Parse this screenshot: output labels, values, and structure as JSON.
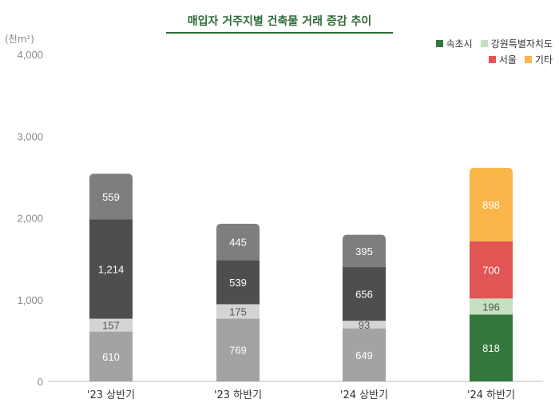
{
  "chart_data": {
    "type": "bar",
    "stacked": true,
    "title": "매입자 거주지별 건축물 거래 증감 추이",
    "unit_label": "(천m²)",
    "ylim": [
      0,
      4000
    ],
    "yticks": [
      "0",
      "1,000",
      "2,000",
      "3,000",
      "4,000"
    ],
    "ytick_values": [
      0,
      1000,
      2000,
      3000,
      4000
    ],
    "categories": [
      "'23 상반기",
      "'23 하반기",
      "'24 상반기",
      "'24 하반기"
    ],
    "legend_position": "top-right",
    "legend": [
      {
        "name": "속초시",
        "color": "#34773d"
      },
      {
        "name": "강원특별자치도",
        "color": "#c4e0c0"
      },
      {
        "name": "서울",
        "color": "#e25555"
      },
      {
        "name": "기타",
        "color": "#fbb64a"
      }
    ],
    "bars": [
      {
        "category": "'23 상반기",
        "segments": [
          {
            "value": 610,
            "label": "610",
            "color": "#a3a3a5",
            "text_color": "#ffffff"
          },
          {
            "value": 157,
            "label": "157",
            "color": "#d4d4d4",
            "text_color": "#555555"
          },
          {
            "value": 1214,
            "label": "1,214",
            "color": "#4e4e50",
            "text_color": "#ffffff"
          },
          {
            "value": 559,
            "label": "559",
            "color": "#7e7e80",
            "text_color": "#ffffff"
          }
        ]
      },
      {
        "category": "'23 하반기",
        "segments": [
          {
            "value": 769,
            "label": "769",
            "color": "#a3a3a5",
            "text_color": "#ffffff"
          },
          {
            "value": 175,
            "label": "175",
            "color": "#d4d4d4",
            "text_color": "#555555"
          },
          {
            "value": 539,
            "label": "539",
            "color": "#4e4e50",
            "text_color": "#ffffff"
          },
          {
            "value": 445,
            "label": "445",
            "color": "#7e7e80",
            "text_color": "#ffffff"
          }
        ]
      },
      {
        "category": "'24 상반기",
        "segments": [
          {
            "value": 649,
            "label": "649",
            "color": "#a3a3a5",
            "text_color": "#ffffff"
          },
          {
            "value": 93,
            "label": "93",
            "color": "#d4d4d4",
            "text_color": "#555555"
          },
          {
            "value": 656,
            "label": "656",
            "color": "#4e4e50",
            "text_color": "#ffffff"
          },
          {
            "value": 395,
            "label": "395",
            "color": "#7e7e80",
            "text_color": "#ffffff"
          }
        ]
      },
      {
        "category": "'24 하반기",
        "segments": [
          {
            "value": 818,
            "label": "818",
            "color": "#34773d",
            "text_color": "#ffffff"
          },
          {
            "value": 196,
            "label": "196",
            "color": "#c4e0c0",
            "text_color": "#555555"
          },
          {
            "value": 700,
            "label": "700",
            "color": "#e25555",
            "text_color": "#ffffff"
          },
          {
            "value": 898,
            "label": "898",
            "color": "#fbb64a",
            "text_color": "#ffffff"
          }
        ]
      }
    ]
  }
}
